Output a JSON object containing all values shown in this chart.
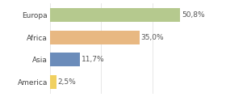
{
  "categories": [
    "Europa",
    "Africa",
    "Asia",
    "America"
  ],
  "values": [
    50.8,
    35.0,
    11.7,
    2.5
  ],
  "labels": [
    "50,8%",
    "35,0%",
    "11,7%",
    "2,5%"
  ],
  "bar_colors": [
    "#b5c98e",
    "#e8b882",
    "#6b8cba",
    "#f0d060"
  ],
  "background_color": "#ffffff",
  "xlim": [
    0,
    58
  ],
  "bar_height": 0.62,
  "label_fontsize": 6.5,
  "category_fontsize": 6.5,
  "figsize": [
    2.8,
    1.2
  ],
  "dpi": 100
}
